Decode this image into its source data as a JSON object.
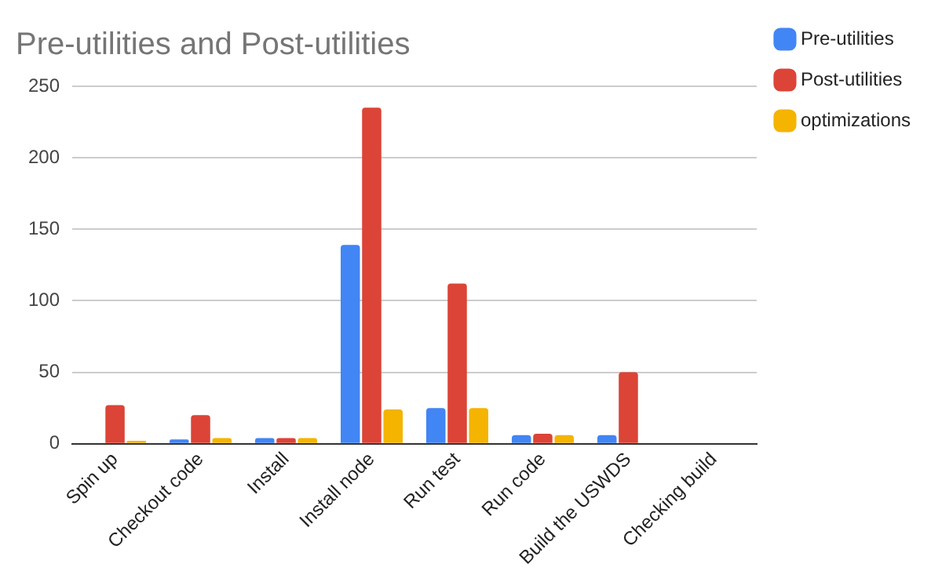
{
  "chart_data": {
    "type": "bar",
    "title": "Pre-utilities and Post-utilities",
    "categories": [
      "Spin up",
      "Checkout code",
      "Install",
      "Install node",
      "Run test",
      "Run code",
      "Build the USWDS",
      "Checking build"
    ],
    "series": [
      {
        "name": "Pre-utilities",
        "color": "#4285f4",
        "values": [
          0,
          3,
          4,
          139,
          25,
          6,
          6,
          0
        ]
      },
      {
        "name": "Post-utilities",
        "color": "#db4437",
        "values": [
          27,
          20,
          4,
          235,
          112,
          7,
          50,
          0
        ]
      },
      {
        "name": "optimizations",
        "color": "#f4b400",
        "values": [
          2,
          4,
          4,
          24,
          25,
          6,
          0,
          0
        ]
      }
    ],
    "ylim": [
      0,
      250
    ],
    "yticks": [
      0,
      50,
      100,
      150,
      200,
      250
    ],
    "grid": "y",
    "legend": "right"
  }
}
